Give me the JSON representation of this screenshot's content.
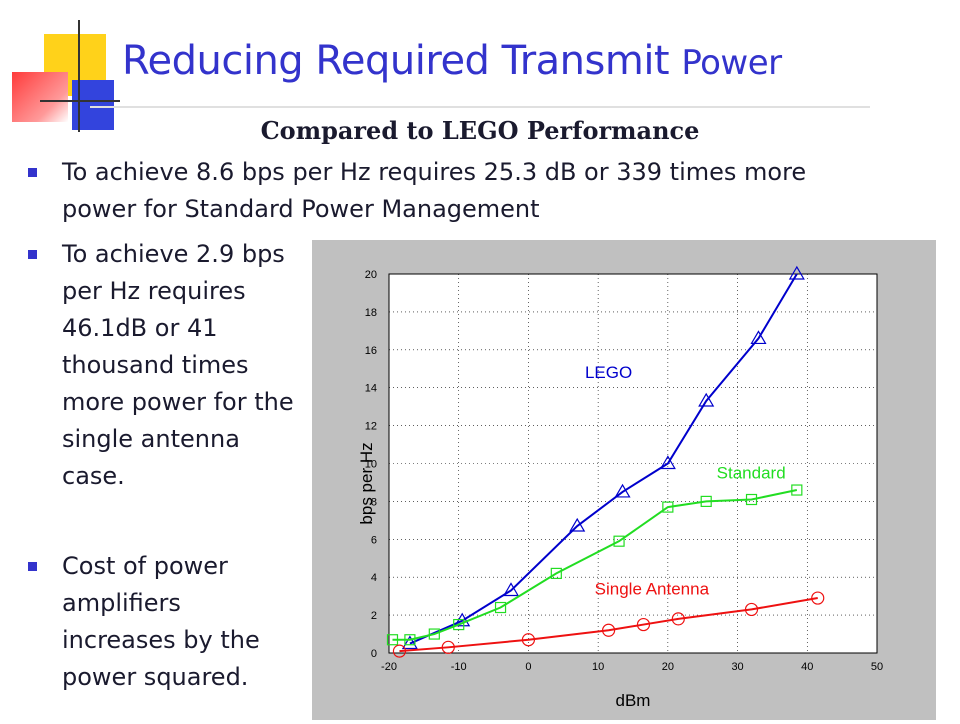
{
  "slide": {
    "title_main": "Reducing Required Transmit",
    "title_tail": "Power",
    "subtitle": "Compared to LEGO Performance",
    "bullets": [
      "To achieve 8.6 bps per Hz requires 25.3 dB or 339 times more power for Standard Power Management",
      "To achieve 2.9 bps per Hz requires 46.1dB or 41 thousand times more power for the single antenna case.",
      "Cost of power amplifiers increases by the power squared."
    ],
    "colors": {
      "title": "#3333cc",
      "bullet_marker": "#3333cc",
      "text": "#1a1a2e"
    }
  },
  "chart_data": {
    "type": "line",
    "xlabel": "dBm",
    "ylabel": "bps per Hz",
    "xlim": [
      -20,
      50
    ],
    "ylim": [
      0,
      20
    ],
    "xticks": [
      "-20",
      "-10",
      "0",
      "10",
      "20",
      "30",
      "40",
      "50"
    ],
    "yticks": [
      "0",
      "2",
      "4",
      "6",
      "8",
      "10",
      "12",
      "14",
      "16",
      "18",
      "20"
    ],
    "grid": true,
    "series": [
      {
        "name": "LEGO",
        "color": "#0000cc",
        "marker": "triangle",
        "x": [
          -17,
          -9.5,
          -2.5,
          7,
          13.5,
          20,
          25.5,
          33,
          38.5
        ],
        "y": [
          0.5,
          1.7,
          3.3,
          6.7,
          8.5,
          10,
          13.3,
          16.6,
          20
        ]
      },
      {
        "name": "Standard",
        "color": "#22dd22",
        "marker": "square",
        "x": [
          -19.5,
          -17,
          -13.5,
          -10,
          -4,
          4,
          13,
          20,
          25.5,
          32,
          38.5
        ],
        "y": [
          0.7,
          0.7,
          1.0,
          1.5,
          2.4,
          4.2,
          5.9,
          7.7,
          8.0,
          8.1,
          8.6
        ]
      },
      {
        "name": "Single Antenna",
        "color": "#ee1111",
        "marker": "circle",
        "x": [
          -18.5,
          -11.5,
          0,
          11.5,
          16.5,
          21.5,
          32,
          41.5
        ],
        "y": [
          0.1,
          0.3,
          0.7,
          1.2,
          1.5,
          1.8,
          2.3,
          2.9
        ]
      }
    ]
  }
}
